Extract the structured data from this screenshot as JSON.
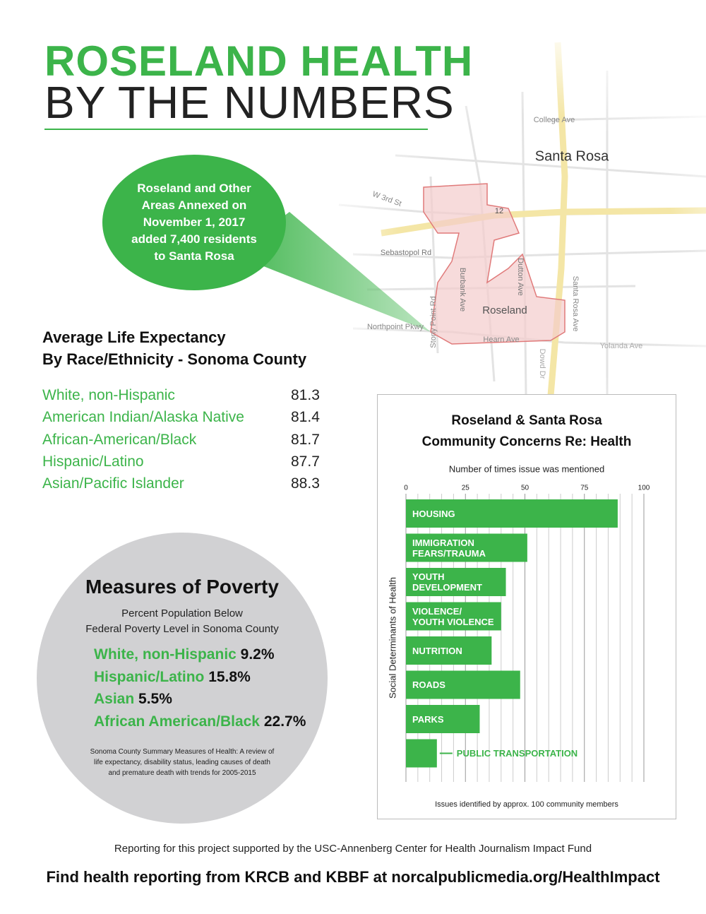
{
  "header": {
    "title": "ROSELAND HEALTH",
    "subtitle": "BY THE NUMBERS"
  },
  "callout": "Roseland and Other\nAreas Annexed on\nNovember 1, 2017\nadded 7,400 residents\nto Santa Rosa",
  "map": {
    "labels": [
      "Santa Rosa",
      "Roseland",
      "College Ave",
      "W 3rd St",
      "Sebastopol Rd",
      "Northpoint Pkwy",
      "Stony Point Rd",
      "Burbank Ave",
      "Dutton Ave",
      "Hearn Ave",
      "Santa Rosa Ave",
      "Yolanda Ave",
      "Dowd Dr",
      "12"
    ]
  },
  "life_expectancy": {
    "title": "Average Life Expectancy\nBy Race/Ethnicity - Sonoma County",
    "rows": [
      [
        "White, non-Hispanic",
        81.3
      ],
      [
        "American Indian/Alaska Native",
        81.4
      ],
      [
        "African-American/Black",
        81.7
      ],
      [
        "Hispanic/Latino",
        87.7
      ],
      [
        "Asian/Pacific Islander",
        88.3
      ]
    ]
  },
  "poverty": {
    "title": "Measures of Poverty",
    "subtitle": "Percent Population Below\nFederal Poverty Level in Sonoma County",
    "rows": [
      [
        "White, non-Hispanic",
        "9.2%"
      ],
      [
        "Hispanic/Latino",
        "15.8%"
      ],
      [
        "Asian",
        "5.5%"
      ],
      [
        "African American/Black",
        "22.7%"
      ]
    ],
    "source": "Sonoma County Summary Measures of Health: A review of\nlife expectancy, disability status, leading causes of death\nand premature death with trends for 2005-2015"
  },
  "chart_data": {
    "type": "bar",
    "title": "Roseland & Santa Rosa\nCommunity Concerns Re: Health",
    "subtitle": "Number of times issue was mentioned",
    "y_label": "Social Determinants of Health",
    "note": "Issues identified by approx. 100 community members",
    "categories": [
      "HOUSING",
      "IMMIGRATION\nFEARS/TRAUMA",
      "YOUTH\nDEVELOPMENT",
      "VIOLENCE/\nYOUTH VIOLENCE",
      "NUTRITION",
      "ROADS",
      "PARKS",
      "PUBLIC TRANSPORTATION"
    ],
    "values": [
      89,
      51,
      42,
      40,
      36,
      48,
      31,
      13
    ],
    "color": "#3cb44a",
    "xlim": [
      0,
      100
    ],
    "xticks": [
      0,
      25,
      50,
      75,
      100
    ],
    "grid": true
  },
  "footer": {
    "credit": "Reporting for this project supported by the USC-Annenberg Center for Health Journalism Impact Fund",
    "link": "Find health reporting from KRCB and KBBF at norcalpublicmedia.org/HealthImpact"
  }
}
